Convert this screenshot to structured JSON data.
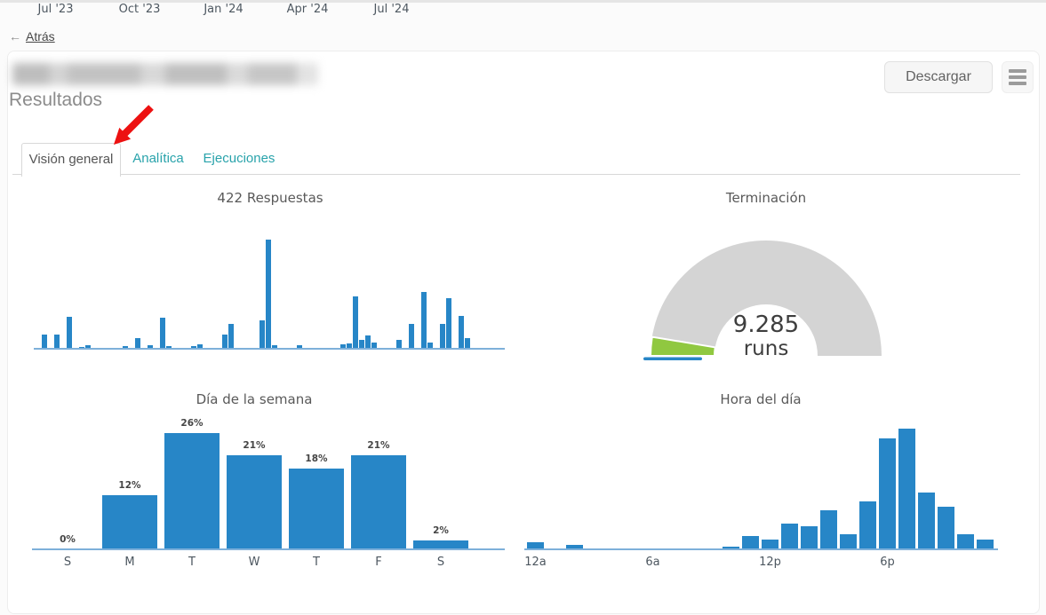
{
  "page": {
    "back_arrow": "←",
    "back_label": "Atrás",
    "subtitle": "Resultados"
  },
  "toolbar": {
    "download_label": "Descargar"
  },
  "tabs": [
    {
      "label": "Visión general",
      "active": true
    },
    {
      "label": "Analítica",
      "active": false
    },
    {
      "label": "Ejecuciones",
      "active": false
    }
  ],
  "colors": {
    "bar_blue": "#2786c7",
    "axis_blue": "#7eb0da",
    "tab_teal": "#29a3ab",
    "gauge_gray": "#d4d4d4",
    "gauge_green": "#90c840",
    "gauge_blue": "#2786c7",
    "arrow_red": "#ed1111"
  },
  "chart_data": [
    {
      "type": "bar",
      "id": "responses-over-time",
      "title": "422 Respuestas",
      "x_unit": "week",
      "y_unit": "relative_height_px (no y-axis shown)",
      "x_ticks": [
        {
          "pos": 8.5,
          "label": "Jul '23"
        },
        {
          "pos": 22,
          "label": "Oct '23"
        },
        {
          "pos": 35.5,
          "label": "Jan '24"
        },
        {
          "pos": 49,
          "label": "Apr '24"
        },
        {
          "pos": 62.5,
          "label": "Jul '24"
        }
      ],
      "bars": [
        [
          1,
          16
        ],
        [
          3,
          16
        ],
        [
          5,
          36
        ],
        [
          7,
          2
        ],
        [
          8,
          4
        ],
        [
          10,
          1
        ],
        [
          14,
          3
        ],
        [
          16,
          12
        ],
        [
          18,
          4
        ],
        [
          20,
          35
        ],
        [
          21,
          3
        ],
        [
          23,
          1
        ],
        [
          25,
          3
        ],
        [
          26,
          5
        ],
        [
          30,
          16
        ],
        [
          31,
          28
        ],
        [
          36,
          32
        ],
        [
          37,
          123
        ],
        [
          38,
          4
        ],
        [
          40,
          1
        ],
        [
          42,
          4
        ],
        [
          49,
          5
        ],
        [
          50,
          6
        ],
        [
          51,
          59
        ],
        [
          52,
          10
        ],
        [
          53,
          15
        ],
        [
          54,
          7
        ],
        [
          58,
          10
        ],
        [
          60,
          28
        ],
        [
          62,
          64
        ],
        [
          63,
          7
        ],
        [
          65,
          28
        ],
        [
          66,
          57
        ],
        [
          68,
          37
        ],
        [
          69,
          12
        ]
      ],
      "grid": false,
      "legend": false
    },
    {
      "type": "gauge",
      "id": "completion",
      "title": "Terminación",
      "value": "9.285",
      "unit": "runs",
      "segments": [
        {
          "color": "green",
          "pct": 5.3
        },
        {
          "color": "blue",
          "pct": 1.2
        },
        {
          "color": "gray",
          "pct": 93.5
        }
      ],
      "range_deg": 180
    },
    {
      "type": "bar",
      "id": "day-of-week",
      "title": "Día de la semana",
      "categories": [
        "S",
        "M",
        "T",
        "W",
        "T",
        "F",
        "S"
      ],
      "values": [
        0,
        12,
        26,
        21,
        18,
        21,
        2
      ],
      "value_labels": [
        "0%",
        "12%",
        "26%",
        "21%",
        "18%",
        "21%",
        "2%"
      ],
      "y_unit": "%",
      "grid": false,
      "legend": false
    },
    {
      "type": "bar",
      "id": "hour-of-day",
      "title": "Hora del día",
      "x_unit": "hour (0-23)",
      "y_unit": "relative_height_px (no y-axis shown)",
      "values": [
        8,
        0,
        5,
        0,
        0,
        0,
        0,
        0,
        0,
        0,
        3,
        15,
        11,
        29,
        26,
        44,
        17,
        54,
        125,
        136,
        64,
        48,
        17,
        11
      ],
      "x_ticks": [
        {
          "hour": 0,
          "label": "12a"
        },
        {
          "hour": 6,
          "label": "6a"
        },
        {
          "hour": 12,
          "label": "12p"
        },
        {
          "hour": 18,
          "label": "6p"
        }
      ],
      "grid": false,
      "legend": false
    }
  ]
}
